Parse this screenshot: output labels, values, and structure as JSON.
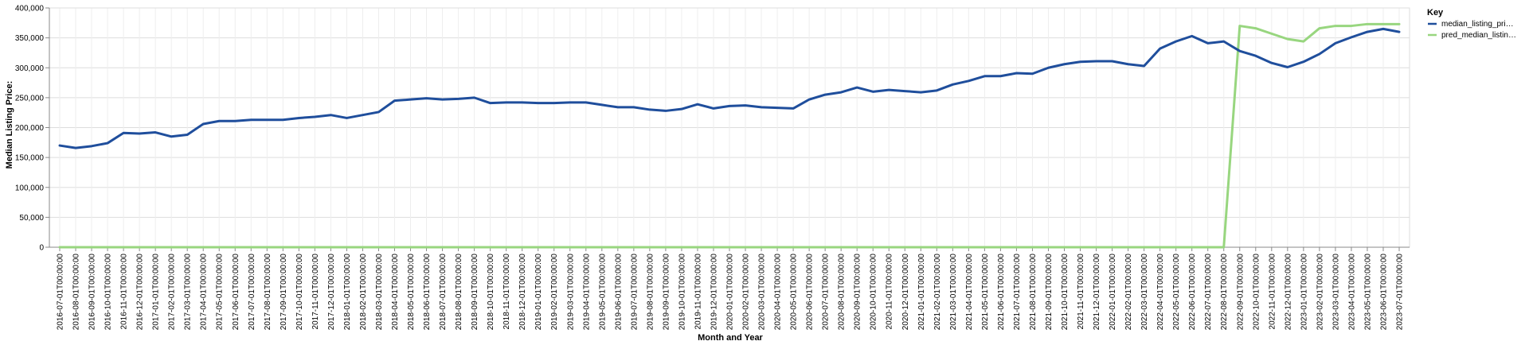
{
  "chart_data": {
    "type": "line",
    "xlabel": "Month and Year",
    "ylabel": "Median Listing Price:",
    "ylim": [
      0,
      400000
    ],
    "yticks": [
      0,
      50000,
      100000,
      150000,
      200000,
      250000,
      300000,
      350000,
      400000
    ],
    "ytick_labels": [
      "0",
      "50,000",
      "100,000",
      "150,000",
      "200,000",
      "250,000",
      "300,000",
      "350,000",
      "400,000"
    ],
    "grid": true,
    "legend": {
      "title": "Key",
      "placement": "top-right",
      "entries": [
        "median_listing_pri…",
        "pred_median_listin…"
      ]
    },
    "x": [
      "2016-07-01T00:00:00",
      "2016-08-01T00:00:00",
      "2016-09-01T00:00:00",
      "2016-10-01T00:00:00",
      "2016-11-01T00:00:00",
      "2016-12-01T00:00:00",
      "2017-01-01T00:00:00",
      "2017-02-01T00:00:00",
      "2017-03-01T00:00:00",
      "2017-04-01T00:00:00",
      "2017-05-01T00:00:00",
      "2017-06-01T00:00:00",
      "2017-07-01T00:00:00",
      "2017-08-01T00:00:00",
      "2017-09-01T00:00:00",
      "2017-10-01T00:00:00",
      "2017-11-01T00:00:00",
      "2017-12-01T00:00:00",
      "2018-01-01T00:00:00",
      "2018-02-01T00:00:00",
      "2018-03-01T00:00:00",
      "2018-04-01T00:00:00",
      "2018-05-01T00:00:00",
      "2018-06-01T00:00:00",
      "2018-07-01T00:00:00",
      "2018-08-01T00:00:00",
      "2018-09-01T00:00:00",
      "2018-10-01T00:00:00",
      "2018-11-01T00:00:00",
      "2018-12-01T00:00:00",
      "2019-01-01T00:00:00",
      "2019-02-01T00:00:00",
      "2019-03-01T00:00:00",
      "2019-04-01T00:00:00",
      "2019-05-01T00:00:00",
      "2019-06-01T00:00:00",
      "2019-07-01T00:00:00",
      "2019-08-01T00:00:00",
      "2019-09-01T00:00:00",
      "2019-10-01T00:00:00",
      "2019-11-01T00:00:00",
      "2019-12-01T00:00:00",
      "2020-01-01T00:00:00",
      "2020-02-01T00:00:00",
      "2020-03-01T00:00:00",
      "2020-04-01T00:00:00",
      "2020-05-01T00:00:00",
      "2020-06-01T00:00:00",
      "2020-07-01T00:00:00",
      "2020-08-01T00:00:00",
      "2020-09-01T00:00:00",
      "2020-10-01T00:00:00",
      "2020-11-01T00:00:00",
      "2020-12-01T00:00:00",
      "2021-01-01T00:00:00",
      "2021-02-01T00:00:00",
      "2021-03-01T00:00:00",
      "2021-04-01T00:00:00",
      "2021-05-01T00:00:00",
      "2021-06-01T00:00:00",
      "2021-07-01T00:00:00",
      "2021-08-01T00:00:00",
      "2021-09-01T00:00:00",
      "2021-10-01T00:00:00",
      "2021-11-01T00:00:00",
      "2021-12-01T00:00:00",
      "2022-01-01T00:00:00",
      "2022-02-01T00:00:00",
      "2022-03-01T00:00:00",
      "2022-04-01T00:00:00",
      "2022-05-01T00:00:00",
      "2022-06-01T00:00:00",
      "2022-07-01T00:00:00",
      "2022-08-01T00:00:00",
      "2022-09-01T00:00:00",
      "2022-10-01T00:00:00",
      "2022-11-01T00:00:00",
      "2022-12-01T00:00:00",
      "2023-01-01T00:00:00",
      "2023-02-01T00:00:00",
      "2023-03-01T00:00:00",
      "2023-04-01T00:00:00",
      "2023-05-01T00:00:00",
      "2023-06-01T00:00:00",
      "2023-07-01T00:00:00"
    ],
    "series": [
      {
        "name": "median_listing_pri…",
        "color": "#1f4e9c",
        "values": [
          170000,
          166000,
          169000,
          174000,
          191000,
          190000,
          192000,
          185000,
          188000,
          206000,
          211000,
          211000,
          213000,
          213000,
          213000,
          216000,
          218000,
          221000,
          216000,
          221000,
          226000,
          245000,
          247000,
          249000,
          247000,
          248000,
          250000,
          241000,
          242000,
          242000,
          241000,
          241000,
          242000,
          242000,
          238000,
          234000,
          234000,
          230000,
          228000,
          231000,
          239000,
          232000,
          236000,
          237000,
          234000,
          233000,
          232000,
          247000,
          255000,
          259000,
          267000,
          260000,
          263000,
          261000,
          259000,
          262000,
          272000,
          278000,
          286000,
          286000,
          291000,
          290000,
          300000,
          306000,
          310000,
          311000,
          311000,
          306000,
          303000,
          332000,
          344000,
          353000,
          341000,
          344000,
          328000,
          320000,
          308000,
          301000,
          310000,
          323000,
          341000,
          351000,
          360000,
          365000,
          360000
        ]
      },
      {
        "name": "pred_median_listin…",
        "color": "#98d67f",
        "values": [
          0,
          0,
          0,
          0,
          0,
          0,
          0,
          0,
          0,
          0,
          0,
          0,
          0,
          0,
          0,
          0,
          0,
          0,
          0,
          0,
          0,
          0,
          0,
          0,
          0,
          0,
          0,
          0,
          0,
          0,
          0,
          0,
          0,
          0,
          0,
          0,
          0,
          0,
          0,
          0,
          0,
          0,
          0,
          0,
          0,
          0,
          0,
          0,
          0,
          0,
          0,
          0,
          0,
          0,
          0,
          0,
          0,
          0,
          0,
          0,
          0,
          0,
          0,
          0,
          0,
          0,
          0,
          0,
          0,
          0,
          0,
          0,
          0,
          0,
          370000,
          366000,
          357000,
          348000,
          344000,
          366000,
          370000,
          370000,
          373000,
          373000,
          373000
        ]
      }
    ]
  }
}
